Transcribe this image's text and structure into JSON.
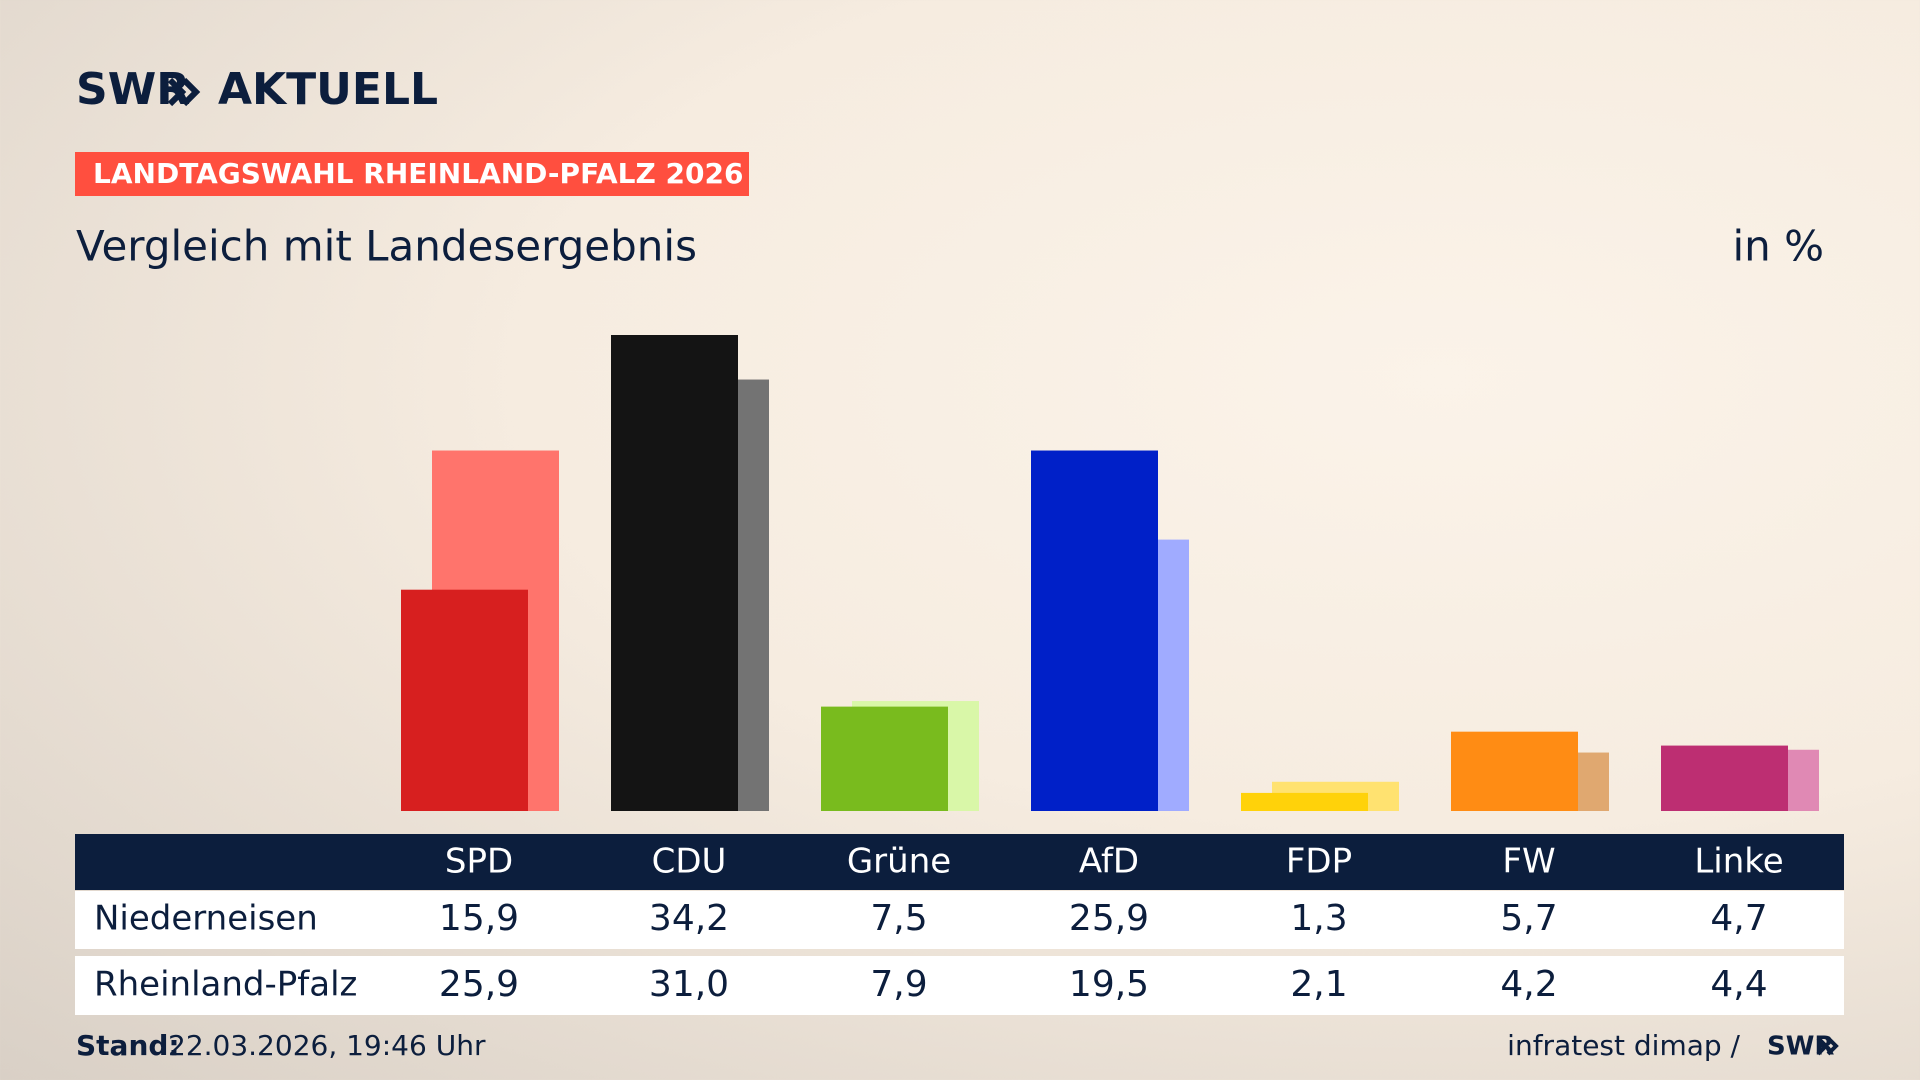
{
  "brand": {
    "name": "SWR",
    "product": "AKTUELL"
  },
  "badge": "LANDTAGSWAHL RHEINLAND-PFALZ 2026",
  "footer": {
    "stand_label": "Stand:",
    "stand_value": "22.03.2026, 19:46 Uhr",
    "source": "infratest dimap /",
    "source_brand": "SWR"
  },
  "chart_data": {
    "type": "bar",
    "title": "Vergleich mit Landesergebnis",
    "unit": "in %",
    "categories": [
      "SPD",
      "CDU",
      "Grüne",
      "AfD",
      "FDP",
      "FW",
      "Linke"
    ],
    "series": [
      {
        "name": "Niederneisen",
        "colors": [
          "#d71f1f",
          "#141414",
          "#79bb1e",
          "#0020c8",
          "#ffd20a",
          "#ff8c14",
          "#bd2e72"
        ],
        "values": [
          15.9,
          34.2,
          7.5,
          25.9,
          1.3,
          5.7,
          4.7
        ],
        "value_labels": [
          "15,9",
          "34,2",
          "7,5",
          "25,9",
          "1,3",
          "5,7",
          "4,7"
        ]
      },
      {
        "name": "Rheinland-Pfalz",
        "colors": [
          "#ff746c",
          "#737373",
          "#d9f7a8",
          "#a0abff",
          "#ffe270",
          "#e0a870",
          "#e089b4"
        ],
        "values": [
          25.9,
          31.0,
          7.9,
          19.5,
          2.1,
          4.2,
          4.4
        ],
        "value_labels": [
          "25,9",
          "31,0",
          "7,9",
          "19,5",
          "2,1",
          "4,2",
          "4,4"
        ]
      }
    ]
  }
}
